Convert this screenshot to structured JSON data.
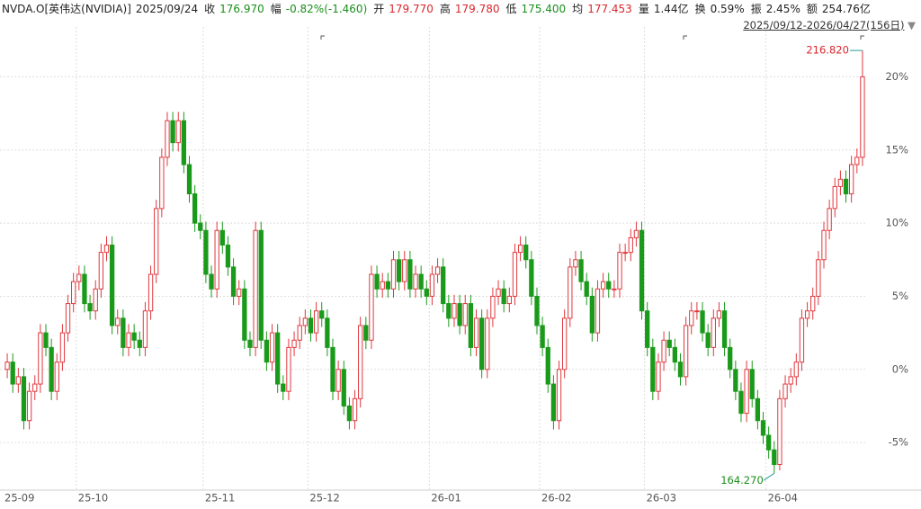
{
  "header": {
    "items": [
      {
        "text": "NVDA.O[英伟达(NVIDIA)]",
        "color": "#222222"
      },
      {
        "text": "2025/09/24",
        "color": "#222222"
      },
      {
        "text": "收",
        "color": "#222222"
      },
      {
        "text": "176.970",
        "color": "#1a8f1a"
      },
      {
        "text": "幅",
        "color": "#222222"
      },
      {
        "text": "-0.82%(-1.460)",
        "color": "#1a8f1a"
      },
      {
        "text": "开",
        "color": "#222222"
      },
      {
        "text": "179.770",
        "color": "#d9262c"
      },
      {
        "text": "高",
        "color": "#222222"
      },
      {
        "text": "179.780",
        "color": "#d9262c"
      },
      {
        "text": "低",
        "color": "#222222"
      },
      {
        "text": "175.400",
        "color": "#1a8f1a"
      },
      {
        "text": "均",
        "color": "#222222"
      },
      {
        "text": "177.453",
        "color": "#d9262c"
      },
      {
        "text": "量",
        "color": "#222222"
      },
      {
        "text": "1.44亿",
        "color": "#222222"
      },
      {
        "text": "换",
        "color": "#222222"
      },
      {
        "text": "0.59%",
        "color": "#222222"
      },
      {
        "text": "振",
        "color": "#222222"
      },
      {
        "text": "2.45%",
        "color": "#222222"
      },
      {
        "text": "额",
        "color": "#222222"
      },
      {
        "text": "254.76亿",
        "color": "#222222"
      }
    ],
    "range": "2025/09/12-2026/04/27(156日)"
  },
  "chart_data": {
    "type": "candlestick",
    "up_color": "#e0383e",
    "down_color": "#1a9a1a",
    "max_label": "216.820",
    "min_label": "164.270",
    "ylim": [
      -8.25,
      23.1
    ],
    "yticks": [
      {
        "value": -5,
        "label": "-5%"
      },
      {
        "value": 0,
        "label": "0%"
      },
      {
        "value": 5,
        "label": "5%"
      },
      {
        "value": 10,
        "label": "10%"
      },
      {
        "value": 15,
        "label": "15%"
      },
      {
        "value": 20,
        "label": "20%"
      }
    ],
    "grid": true,
    "categories": [
      "25-09",
      null,
      null,
      null,
      null,
      null,
      null,
      null,
      null,
      null,
      null,
      null,
      null,
      "25-10",
      null,
      null,
      null,
      null,
      null,
      null,
      null,
      null,
      null,
      null,
      null,
      null,
      null,
      null,
      null,
      null,
      null,
      null,
      null,
      null,
      null,
      null,
      "25-11",
      null,
      null,
      null,
      null,
      null,
      null,
      null,
      null,
      null,
      null,
      null,
      null,
      null,
      null,
      null,
      null,
      null,
      null,
      "25-12",
      null,
      null,
      null,
      null,
      null,
      null,
      null,
      null,
      null,
      null,
      null,
      null,
      null,
      null,
      null,
      null,
      null,
      null,
      null,
      null,
      null,
      "26-01",
      null,
      null,
      null,
      null,
      null,
      null,
      null,
      null,
      null,
      null,
      null,
      null,
      null,
      null,
      null,
      null,
      null,
      null,
      null,
      "26-02",
      null,
      null,
      null,
      null,
      null,
      null,
      null,
      null,
      null,
      null,
      null,
      null,
      null,
      null,
      null,
      null,
      null,
      null,
      "26-03",
      null,
      null,
      null,
      null,
      null,
      null,
      null,
      null,
      null,
      null,
      null,
      null,
      null,
      null,
      null,
      null,
      null,
      null,
      null,
      null,
      null,
      "26-04",
      null,
      null,
      null,
      null,
      null,
      null,
      null,
      null,
      null,
      null,
      null,
      null,
      null,
      null,
      null,
      null,
      null
    ],
    "open": [
      0.0,
      0.5,
      -1.0,
      -0.5,
      -3.5,
      -1.5,
      -1.0,
      2.5,
      1.5,
      -1.5,
      0.5,
      2.5,
      4.5,
      6.0,
      6.5,
      4.5,
      4.0,
      5.5,
      8.0,
      8.5,
      3.0,
      3.5,
      1.5,
      2.5,
      2.0,
      1.5,
      4.0,
      6.5,
      11.0,
      14.5,
      17.0,
      15.5,
      17.0,
      14.0,
      12.0,
      10.0,
      9.5,
      6.5,
      5.5,
      9.5,
      8.5,
      7.0,
      5.0,
      5.5,
      2.0,
      1.5,
      9.5,
      2.0,
      0.5,
      2.5,
      -1.0,
      -1.5,
      1.5,
      2.0,
      3.0,
      3.5,
      2.5,
      4.0,
      3.5,
      1.5,
      -1.5,
      0.0,
      -2.5,
      -3.5,
      -2.0,
      3.0,
      2.0,
      6.5,
      5.5,
      6.0,
      5.5,
      7.5,
      6.0,
      7.5,
      5.5,
      6.5,
      5.5,
      5.0,
      6.5,
      7.0,
      4.5,
      3.5,
      4.5,
      3.0,
      4.5,
      1.5,
      3.5,
      0.0,
      3.5,
      5.0,
      5.5,
      4.5,
      5.0,
      8.0,
      8.5,
      7.5,
      5.0,
      3.0,
      1.5,
      -1.0,
      -3.5,
      0.0,
      3.5,
      7.0,
      7.5,
      6.0,
      5.0,
      2.5,
      5.5,
      6.0,
      5.5,
      5.5,
      8.0,
      8.0,
      9.0,
      9.5,
      4.0,
      1.5,
      -1.5,
      0.5,
      2.0,
      1.5,
      0.5,
      -0.5,
      3.0,
      4.0,
      4.0,
      2.5,
      1.5,
      3.5,
      4.0,
      1.5,
      0.0,
      -1.5,
      -3.0,
      0.0,
      -2.0,
      -3.5,
      -4.5,
      -5.5,
      -6.5,
      -2.0,
      -1.0,
      -0.5,
      0.5,
      3.5,
      4.0,
      5.0,
      7.5,
      9.5,
      11.0,
      12.5,
      13.0,
      12.0,
      14.0,
      14.5
    ],
    "high": [
      1.1,
      1.1,
      0.1,
      0.1,
      -0.9,
      -0.4,
      3.1,
      3.1,
      2.1,
      1.1,
      3.1,
      5.1,
      6.6,
      7.1,
      7.1,
      5.1,
      6.1,
      8.6,
      9.1,
      9.1,
      4.1,
      4.1,
      3.1,
      3.1,
      2.6,
      4.6,
      7.1,
      11.6,
      15.1,
      17.6,
      17.6,
      17.6,
      17.6,
      14.6,
      12.6,
      10.6,
      10.1,
      7.1,
      10.1,
      10.1,
      9.1,
      7.6,
      6.1,
      6.1,
      2.6,
      10.1,
      10.1,
      2.6,
      3.1,
      3.1,
      -0.4,
      2.1,
      2.6,
      3.6,
      4.1,
      4.1,
      4.6,
      4.6,
      4.1,
      2.1,
      0.6,
      0.6,
      -1.9,
      -1.4,
      3.6,
      3.6,
      7.1,
      7.1,
      6.6,
      6.6,
      8.1,
      8.1,
      8.1,
      8.1,
      7.1,
      7.1,
      6.1,
      7.1,
      7.6,
      7.6,
      5.1,
      5.1,
      5.1,
      5.1,
      5.1,
      4.1,
      4.1,
      4.1,
      5.6,
      6.1,
      6.1,
      5.6,
      8.6,
      9.1,
      9.1,
      8.1,
      5.6,
      3.6,
      2.1,
      -0.4,
      0.6,
      4.1,
      7.6,
      8.1,
      8.1,
      6.6,
      5.6,
      6.1,
      6.6,
      6.6,
      6.1,
      8.6,
      8.6,
      9.6,
      10.1,
      10.1,
      4.6,
      2.1,
      1.1,
      2.6,
      2.6,
      2.1,
      1.1,
      3.6,
      4.6,
      4.6,
      4.6,
      3.1,
      4.1,
      4.6,
      4.6,
      2.1,
      0.6,
      -0.9,
      0.6,
      0.6,
      -1.4,
      -2.9,
      -3.9,
      -4.9,
      -1.4,
      -0.4,
      0.1,
      1.1,
      4.1,
      4.6,
      5.6,
      8.1,
      10.1,
      11.6,
      13.1,
      13.6,
      13.6,
      14.6,
      15.1,
      21.8
    ],
    "low": [
      -0.6,
      -1.6,
      -1.6,
      -4.1,
      -4.1,
      -2.1,
      -1.6,
      0.9,
      -2.1,
      -2.1,
      -0.1,
      1.9,
      3.9,
      5.4,
      3.9,
      3.4,
      3.4,
      4.9,
      7.4,
      2.4,
      2.4,
      0.9,
      0.9,
      1.4,
      0.9,
      0.9,
      3.4,
      5.9,
      10.4,
      13.9,
      14.9,
      14.9,
      13.4,
      11.4,
      9.4,
      8.9,
      5.9,
      4.9,
      4.9,
      7.9,
      6.4,
      4.4,
      4.4,
      1.4,
      0.9,
      0.9,
      1.4,
      -0.1,
      -0.1,
      -1.6,
      -2.1,
      -2.1,
      0.9,
      1.4,
      2.4,
      1.9,
      1.9,
      2.9,
      0.9,
      -2.1,
      -2.1,
      -3.1,
      -4.1,
      -4.1,
      -2.6,
      1.4,
      1.4,
      4.9,
      4.9,
      4.9,
      4.9,
      5.4,
      5.4,
      4.9,
      4.9,
      4.9,
      4.4,
      4.4,
      5.9,
      3.9,
      2.9,
      2.9,
      2.4,
      2.4,
      0.9,
      0.9,
      -0.6,
      -0.6,
      2.9,
      4.4,
      3.9,
      3.9,
      4.4,
      7.4,
      6.9,
      4.4,
      2.4,
      0.9,
      -1.6,
      -4.1,
      -4.1,
      -0.6,
      2.9,
      6.4,
      5.4,
      4.4,
      1.9,
      1.9,
      4.9,
      4.9,
      4.9,
      4.9,
      7.4,
      7.4,
      8.4,
      3.4,
      0.9,
      -2.1,
      -2.1,
      -0.1,
      0.9,
      -0.1,
      -1.1,
      -1.1,
      2.4,
      3.4,
      1.9,
      0.9,
      0.9,
      2.9,
      0.9,
      -0.6,
      -2.1,
      -3.6,
      -3.6,
      -2.6,
      -4.1,
      -5.1,
      -6.1,
      -7.1,
      -6.9,
      -2.6,
      -1.6,
      -1.1,
      -0.1,
      2.9,
      3.4,
      4.4,
      6.9,
      8.9,
      10.4,
      11.9,
      11.4,
      11.4,
      13.4,
      13.9
    ],
    "close": [
      0.5,
      -1.0,
      -0.5,
      -3.5,
      -1.5,
      -1.0,
      2.5,
      1.5,
      -1.5,
      0.5,
      2.5,
      4.5,
      6.0,
      6.5,
      4.5,
      4.0,
      5.5,
      8.0,
      8.5,
      3.0,
      3.5,
      1.5,
      2.5,
      2.0,
      1.5,
      4.0,
      6.5,
      11.0,
      14.5,
      17.0,
      15.5,
      17.0,
      14.0,
      12.0,
      10.0,
      9.5,
      6.5,
      5.5,
      9.5,
      8.5,
      7.0,
      5.0,
      5.5,
      2.0,
      1.5,
      9.5,
      2.0,
      0.5,
      2.5,
      -1.0,
      -1.5,
      1.5,
      2.0,
      3.0,
      3.5,
      2.5,
      4.0,
      3.5,
      1.5,
      -1.5,
      0.0,
      -2.5,
      -3.5,
      -2.0,
      3.0,
      2.0,
      6.5,
      5.5,
      6.0,
      5.5,
      7.5,
      6.0,
      7.5,
      5.5,
      6.5,
      5.5,
      5.0,
      6.5,
      7.0,
      4.5,
      3.5,
      4.5,
      3.0,
      4.5,
      1.5,
      3.5,
      0.0,
      3.5,
      5.0,
      5.5,
      4.5,
      5.0,
      8.0,
      8.5,
      7.5,
      5.0,
      3.0,
      1.5,
      -1.0,
      -3.5,
      0.0,
      3.5,
      7.0,
      7.5,
      6.0,
      5.0,
      2.5,
      5.5,
      6.0,
      5.5,
      5.5,
      8.0,
      8.0,
      9.0,
      9.5,
      4.0,
      1.5,
      -1.5,
      0.5,
      2.0,
      1.5,
      0.5,
      -0.5,
      3.0,
      4.0,
      4.0,
      2.5,
      1.5,
      3.5,
      4.0,
      1.5,
      0.0,
      -1.5,
      -3.0,
      0.0,
      -2.0,
      -3.5,
      -4.5,
      -5.5,
      -6.5,
      -2.0,
      -1.0,
      -0.5,
      0.5,
      3.5,
      4.0,
      5.0,
      7.5,
      9.5,
      11.0,
      12.5,
      13.0,
      12.0,
      14.0,
      14.5,
      20.0
    ]
  }
}
